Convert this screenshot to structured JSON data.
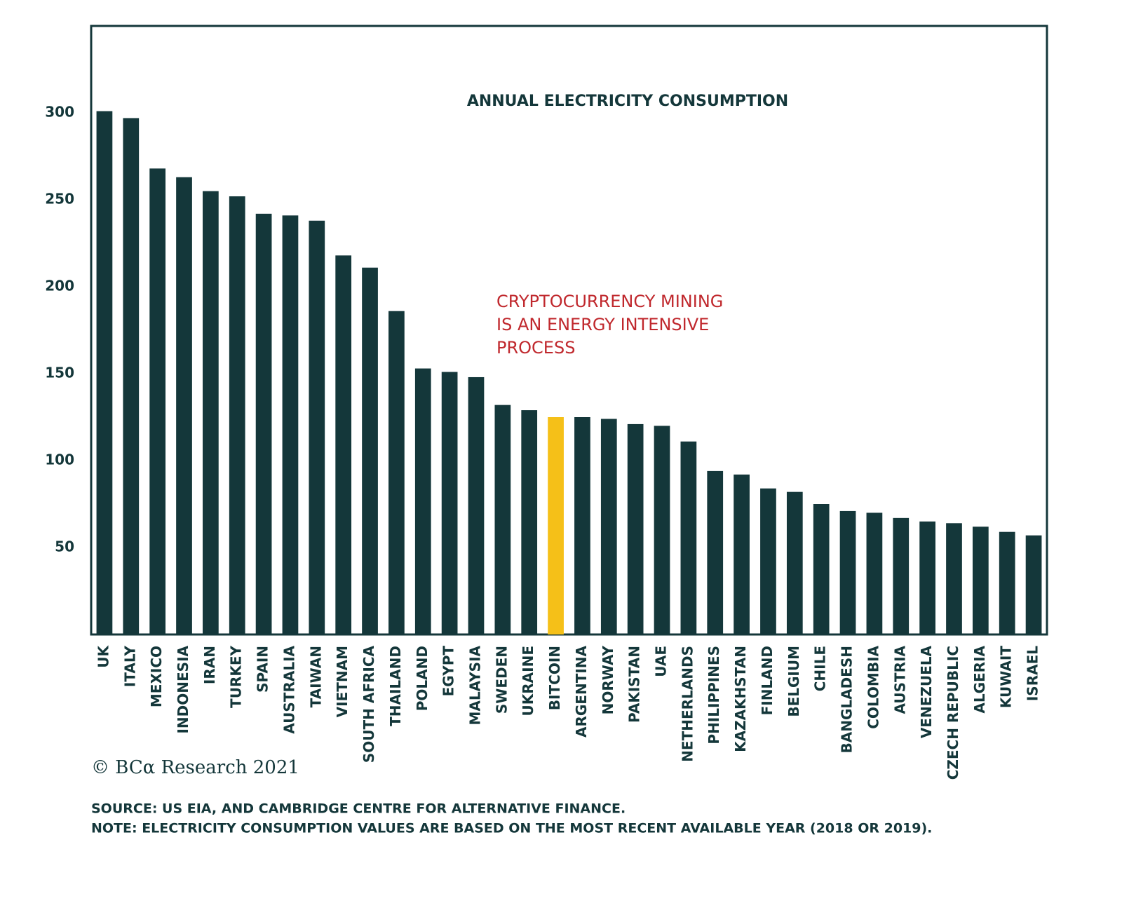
{
  "chart_data": {
    "type": "bar",
    "title": "ANNUAL ELECTRICITY CONSUMPTION",
    "annotation": [
      "CRYPTOCURRENCY MINING",
      "IS AN ENERGY INTENSIVE",
      "PROCESS"
    ],
    "categories": [
      "UK",
      "ITALY",
      "MEXICO",
      "INDONESIA",
      "IRAN",
      "TURKEY",
      "SPAIN",
      "AUSTRALIA",
      "TAIWAN",
      "VIETNAM",
      "SOUTH AFRICA",
      "THAILAND",
      "POLAND",
      "EGYPT",
      "MALAYSIA",
      "SWEDEN",
      "UKRAINE",
      "BITCOIN",
      "ARGENTINA",
      "NORWAY",
      "PAKISTAN",
      "UAE",
      "NETHERLANDS",
      "PHILIPPINES",
      "KAZAKHSTAN",
      "FINLAND",
      "BELGIUM",
      "CHILE",
      "BANGLADESH",
      "COLOMBIA",
      "AUSTRIA",
      "VENEZUELA",
      "CZECH REPUBLIC",
      "ALGERIA",
      "KUWAIT",
      "ISRAEL"
    ],
    "values": [
      301,
      297,
      268,
      263,
      255,
      252,
      242,
      241,
      238,
      218,
      211,
      186,
      153,
      151,
      148,
      132,
      129,
      125,
      125,
      124,
      121,
      120,
      111,
      94,
      92,
      84,
      82,
      75,
      71,
      70,
      67,
      65,
      64,
      62,
      59,
      57
    ],
    "colors": [
      "#14373a",
      "#14373a",
      "#14373a",
      "#14373a",
      "#14373a",
      "#14373a",
      "#14373a",
      "#14373a",
      "#14373a",
      "#14373a",
      "#14373a",
      "#14373a",
      "#14373a",
      "#14373a",
      "#14373a",
      "#14373a",
      "#14373a",
      "#f5c018",
      "#14373a",
      "#14373a",
      "#14373a",
      "#14373a",
      "#14373a",
      "#14373a",
      "#14373a",
      "#14373a",
      "#14373a",
      "#14373a",
      "#14373a",
      "#14373a",
      "#14373a",
      "#14373a",
      "#14373a",
      "#14373a",
      "#14373a",
      "#14373a"
    ],
    "ylim": [
      0,
      350
    ],
    "yticks": [
      50,
      100,
      150,
      200,
      250,
      300
    ],
    "grid": false,
    "copyright": "© BCα Research 2021",
    "source": "SOURCE: US EIA, AND CAMBRIDGE CENTRE FOR ALTERNATIVE FINANCE.",
    "note": "NOTE: ELECTRICITY CONSUMPTION VALUES ARE BASED ON THE MOST RECENT AVAILABLE YEAR (2018 OR 2019)."
  }
}
